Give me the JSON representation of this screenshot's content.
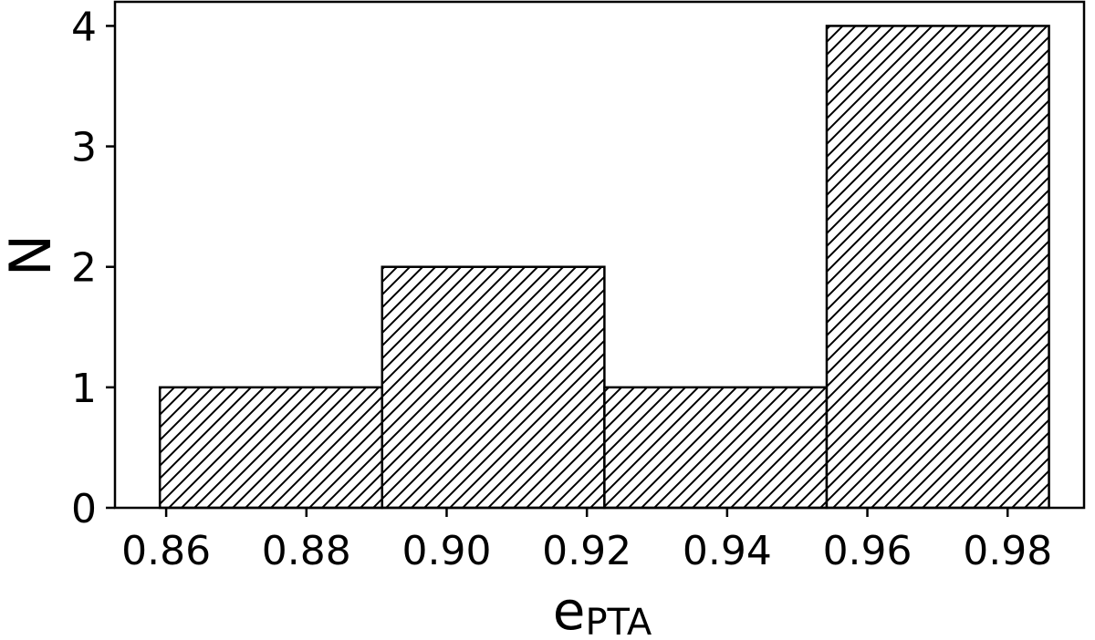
{
  "chart_data": {
    "type": "histogram",
    "xlabel": "e",
    "xlabel_subscript": "PTA",
    "ylabel": "N",
    "bins": [
      0.8591,
      0.8908,
      0.9225,
      0.9542,
      0.9859
    ],
    "counts": [
      1,
      2,
      1,
      4
    ],
    "fill": "#ffffff",
    "edgecolor": "#000000",
    "hatch": "///",
    "xlim": [
      0.8527,
      0.9909
    ],
    "xticks": [
      {
        "value": 0.86,
        "label": "0.86"
      },
      {
        "value": 0.88,
        "label": "0.88"
      },
      {
        "value": 0.9,
        "label": "0.90"
      },
      {
        "value": 0.92,
        "label": "0.92"
      },
      {
        "value": 0.94,
        "label": "0.94"
      },
      {
        "value": 0.96,
        "label": "0.96"
      },
      {
        "value": 0.98,
        "label": "0.98"
      }
    ],
    "ylim": [
      0,
      4.2
    ],
    "yticks": [
      0,
      1,
      2,
      3,
      4
    ],
    "grid": false
  }
}
